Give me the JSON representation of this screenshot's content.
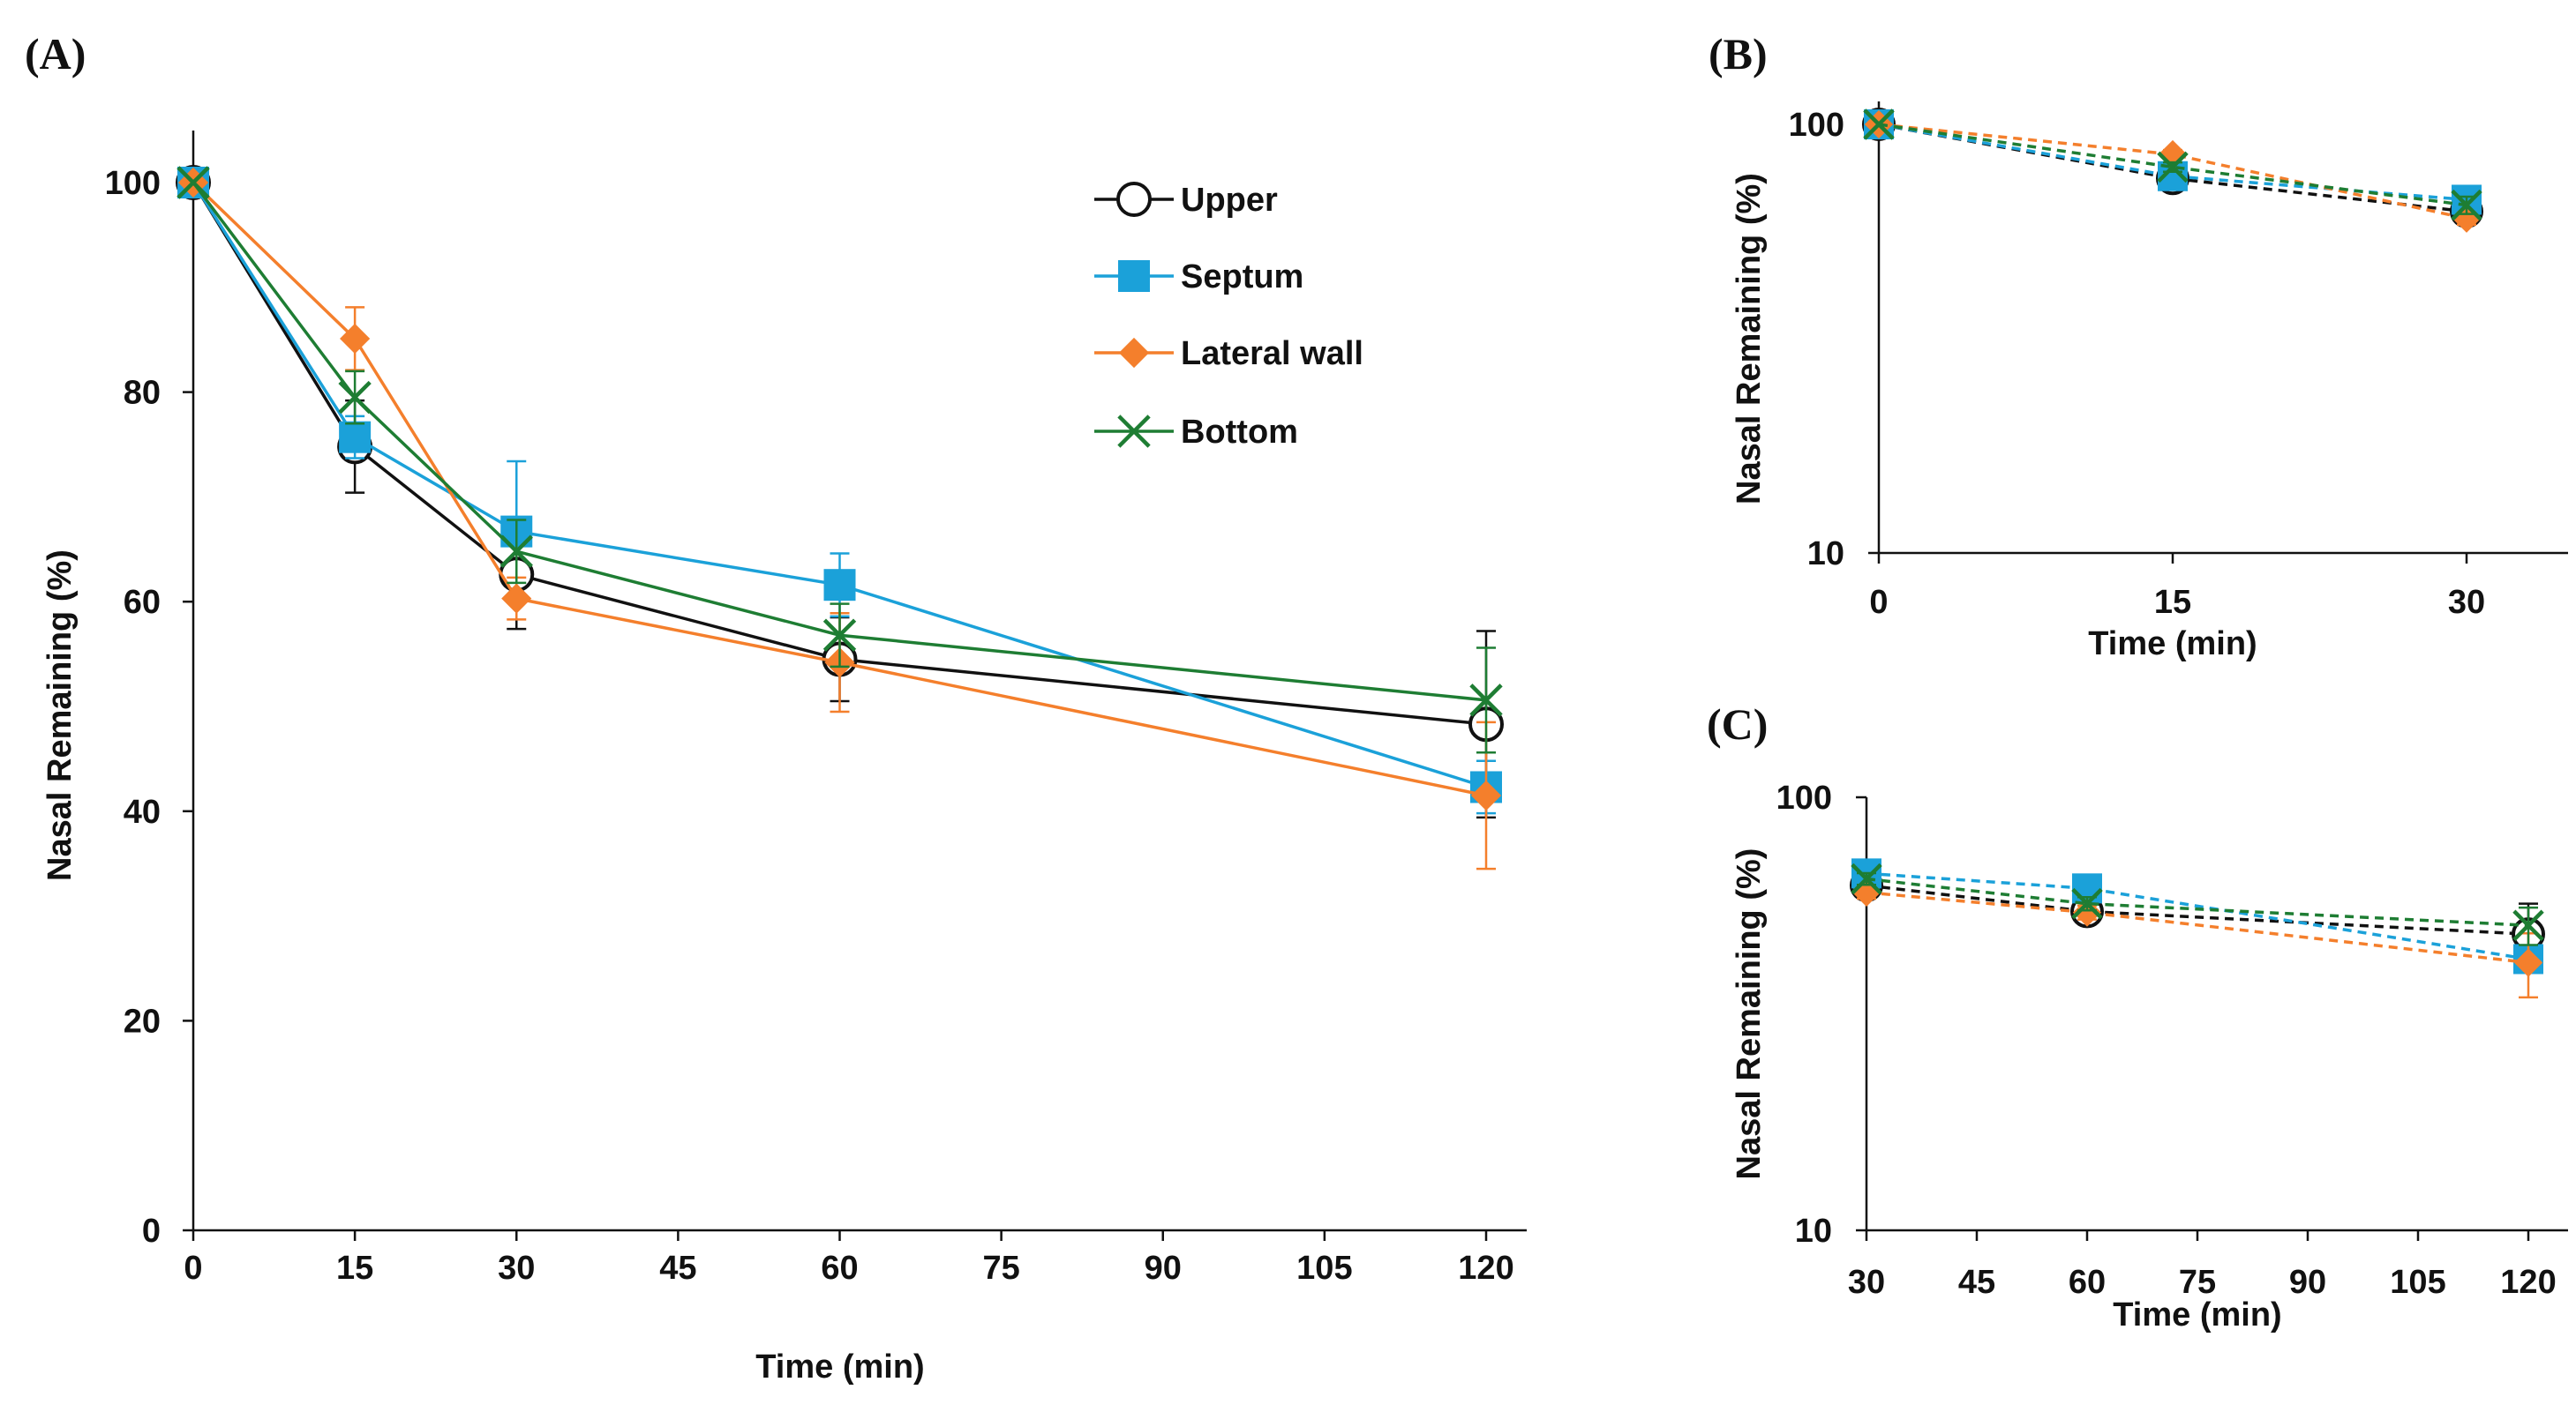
{
  "colors": {
    "upper": "#111111",
    "septum": "#1BA1D9",
    "lateral": "#F47F2C",
    "bottom": "#1E7D33",
    "axis": "#111111"
  },
  "chart_data": [
    {
      "panel": "(A)",
      "type": "line",
      "scale": "linear",
      "xlabel": "Time (min)",
      "ylabel": "Nasal Remaining (%)",
      "xlim": [
        0,
        120
      ],
      "ylim": [
        0,
        100
      ],
      "xticks": [
        0,
        15,
        30,
        45,
        60,
        75,
        90,
        105,
        120
      ],
      "yticks": [
        0,
        20,
        40,
        60,
        80,
        100
      ],
      "x": [
        0,
        15,
        30,
        60,
        120
      ],
      "legend_position": "top-right",
      "series": [
        {
          "key": "upper",
          "name": "Upper",
          "marker": "circle-open",
          "values": [
            100,
            74.8,
            62.6,
            54.5,
            48.3
          ],
          "errors": [
            0,
            4.4,
            5.2,
            4.0,
            8.9
          ]
        },
        {
          "key": "septum",
          "name": "Septum",
          "marker": "square",
          "values": [
            100,
            75.7,
            66.7,
            61.6,
            42.3
          ],
          "errors": [
            0,
            2.0,
            6.7,
            3.0,
            2.5
          ]
        },
        {
          "key": "lateral",
          "name": "Lateral wall",
          "marker": "diamond",
          "values": [
            100,
            85.1,
            60.3,
            54.2,
            41.5
          ],
          "errors": [
            0,
            3.0,
            2.0,
            4.7,
            7.0
          ]
        },
        {
          "key": "bottom",
          "name": "Bottom",
          "marker": "x",
          "values": [
            100,
            79.5,
            64.8,
            56.8,
            50.6
          ],
          "errors": [
            0,
            2.5,
            3.0,
            3.0,
            5.0
          ]
        }
      ]
    },
    {
      "panel": "(B)",
      "type": "line",
      "scale": "log",
      "line_style": "dashed",
      "xlabel": "Time (min)",
      "ylabel": "Nasal Remaining (%)",
      "xlim": [
        0,
        35
      ],
      "ylim": [
        10,
        100
      ],
      "xticks": [
        0,
        15,
        30
      ],
      "yticks": [
        10,
        100
      ],
      "x": [
        0,
        15,
        30
      ],
      "series": [
        {
          "key": "upper",
          "name": "Upper",
          "marker": "circle-open",
          "values": [
            100,
            74.8,
            62.6
          ],
          "errors": [
            0,
            2.0,
            2.0
          ]
        },
        {
          "key": "septum",
          "name": "Septum",
          "marker": "square",
          "values": [
            100,
            75.7,
            66.7
          ],
          "errors": [
            0,
            2.0,
            5.0
          ]
        },
        {
          "key": "lateral",
          "name": "Lateral wall",
          "marker": "diamond",
          "values": [
            100,
            85.1,
            60.3
          ],
          "errors": [
            0,
            2.0,
            2.0
          ]
        },
        {
          "key": "bottom",
          "name": "Bottom",
          "marker": "x",
          "values": [
            100,
            79.5,
            64.8
          ],
          "errors": [
            0,
            2.0,
            3.0
          ]
        }
      ]
    },
    {
      "panel": "(C)",
      "type": "line",
      "scale": "log",
      "line_style": "dashed",
      "xlabel": "Time (min)",
      "ylabel": "Nasal Remaining (%)",
      "xlim": [
        30,
        120
      ],
      "ylim": [
        10,
        100
      ],
      "xticks": [
        30,
        45,
        60,
        75,
        90,
        105,
        120
      ],
      "yticks": [
        10,
        100
      ],
      "x": [
        30,
        60,
        120
      ],
      "series": [
        {
          "key": "upper",
          "name": "Upper",
          "marker": "circle-open",
          "values": [
            62.6,
            54.5,
            48.3
          ],
          "errors": [
            2.0,
            3.0,
            8.5
          ]
        },
        {
          "key": "septum",
          "name": "Septum",
          "marker": "square",
          "values": [
            66.7,
            61.6,
            42.3
          ],
          "errors": [
            3.0,
            2.0,
            2.0
          ]
        },
        {
          "key": "lateral",
          "name": "Lateral wall",
          "marker": "diamond",
          "values": [
            60.3,
            54.2,
            41.5
          ],
          "errors": [
            2.0,
            2.0,
            7.0
          ]
        },
        {
          "key": "bottom",
          "name": "Bottom",
          "marker": "x",
          "values": [
            64.8,
            56.8,
            50.6
          ],
          "errors": [
            2.0,
            2.0,
            5.0
          ]
        }
      ]
    }
  ]
}
